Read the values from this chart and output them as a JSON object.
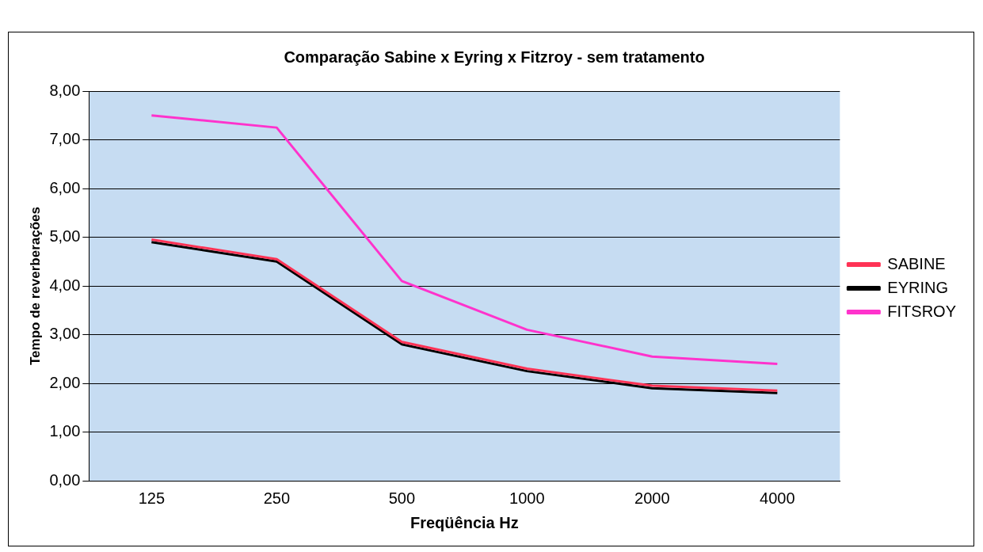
{
  "chart_data": {
    "type": "line",
    "title": "Comparação Sabine x Eyring x Fitzroy - sem tratamento",
    "xlabel": "Freqüência Hz",
    "ylabel": "Tempo de reverberações",
    "categories": [
      "125",
      "250",
      "500",
      "1000",
      "2000",
      "4000"
    ],
    "series": [
      {
        "name": "SABINE",
        "color": "#ff3355",
        "values": [
          4.95,
          4.55,
          2.85,
          2.3,
          1.95,
          1.85
        ]
      },
      {
        "name": "EYRING",
        "color": "#000000",
        "values": [
          4.9,
          4.5,
          2.8,
          2.25,
          1.9,
          1.8
        ]
      },
      {
        "name": "FITSROY",
        "color": "#ff33cc",
        "values": [
          7.5,
          7.25,
          4.1,
          3.1,
          2.55,
          2.4
        ]
      }
    ],
    "ylim": [
      0,
      8
    ],
    "yticks": [
      {
        "value": 0,
        "label": "0,00"
      },
      {
        "value": 1,
        "label": "1,00"
      },
      {
        "value": 2,
        "label": "2,00"
      },
      {
        "value": 3,
        "label": "3,00"
      },
      {
        "value": 4,
        "label": "4,00"
      },
      {
        "value": 5,
        "label": "5,00"
      },
      {
        "value": 6,
        "label": "6,00"
      },
      {
        "value": 7,
        "label": "7,00"
      },
      {
        "value": 8,
        "label": "8,00"
      }
    ],
    "grid": "y",
    "legend": "right",
    "marker": "none",
    "line_style": "solid"
  }
}
